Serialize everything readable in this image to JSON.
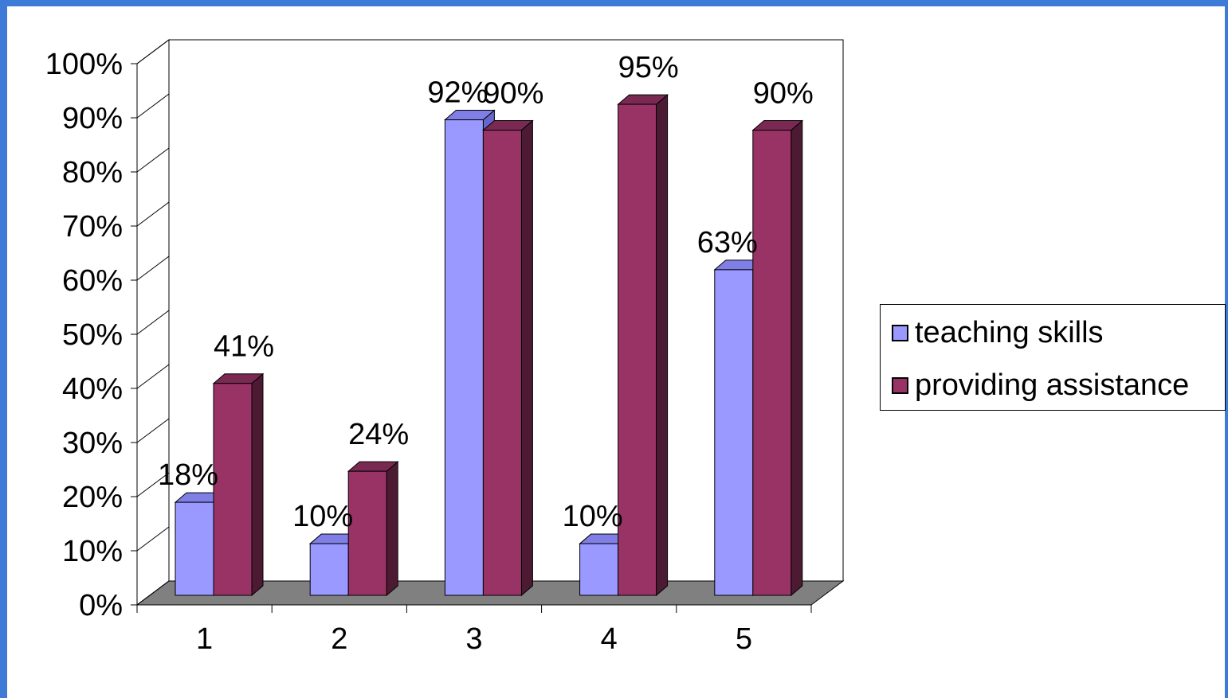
{
  "chart_data": {
    "type": "bar",
    "categories": [
      "1",
      "2",
      "3",
      "4",
      "5"
    ],
    "series": [
      {
        "name": "teaching skills",
        "values": [
          18,
          10,
          92,
          10,
          63
        ],
        "labels": [
          "18%",
          "10%",
          "92%",
          "10%",
          "63%"
        ],
        "color": "#9999ff"
      },
      {
        "name": "providing assistance",
        "values": [
          41,
          24,
          90,
          95,
          90
        ],
        "labels": [
          "41%",
          "24%",
          "90%",
          "95%",
          "90%"
        ],
        "color": "#993366"
      }
    ],
    "y_ticks": [
      "0%",
      "10%",
      "20%",
      "30%",
      "40%",
      "50%",
      "60%",
      "70%",
      "80%",
      "90%",
      "100%"
    ],
    "ylim": [
      0,
      100
    ],
    "grid": false,
    "legend_position": "right",
    "three_d": true,
    "colors": {
      "page_border": "#3d7bd6",
      "floor": "#808080",
      "series1_side": "#6666cc",
      "series2_side": "#4d1a33"
    }
  }
}
